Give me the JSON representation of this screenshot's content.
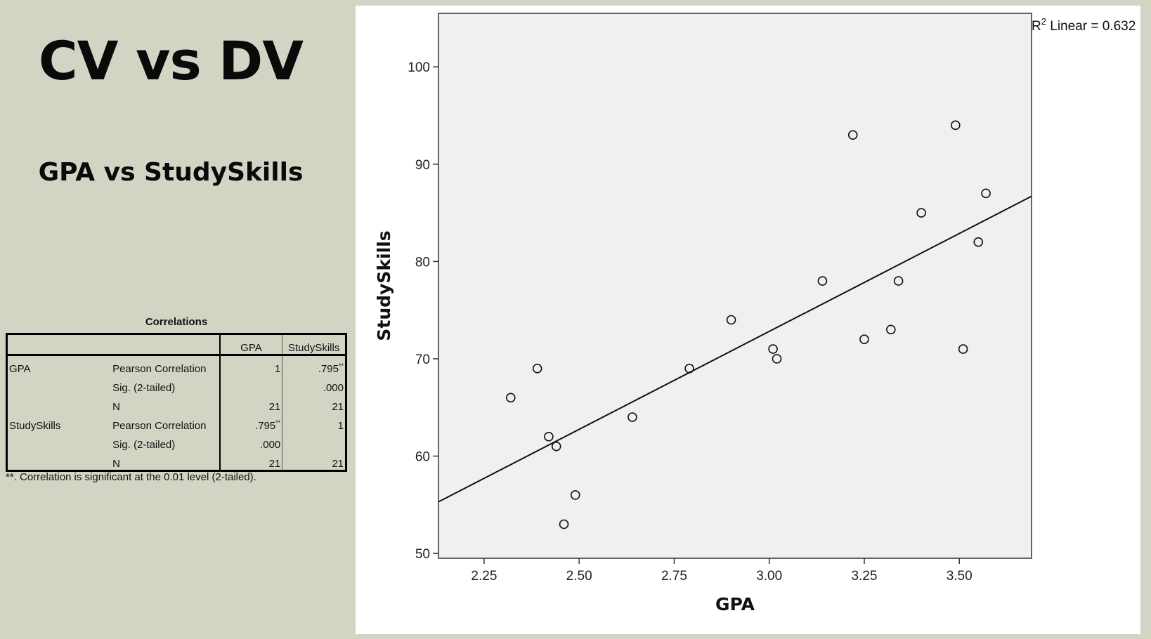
{
  "slide": {
    "title": "CV vs DV",
    "subtitle": "GPA vs StudySkills"
  },
  "correlations": {
    "title": "Correlations",
    "headers": [
      "",
      "",
      "GPA",
      "StudySkills"
    ],
    "rows": [
      {
        "var": "GPA",
        "stat": "Pearson Correlation",
        "gpa": "1",
        "gpa_sup": "",
        "ss": ".795",
        "ss_sup": "**"
      },
      {
        "var": "",
        "stat": "Sig. (2-tailed)",
        "gpa": "",
        "gpa_sup": "",
        "ss": ".000",
        "ss_sup": ""
      },
      {
        "var": "",
        "stat": "N",
        "gpa": "21",
        "gpa_sup": "",
        "ss": "21",
        "ss_sup": ""
      },
      {
        "var": "StudySkills",
        "stat": "Pearson Correlation",
        "gpa": ".795",
        "gpa_sup": "**",
        "ss": "1",
        "ss_sup": ""
      },
      {
        "var": "",
        "stat": "Sig. (2-tailed)",
        "gpa": ".000",
        "gpa_sup": "",
        "ss": "",
        "ss_sup": ""
      },
      {
        "var": "",
        "stat": "N",
        "gpa": "21",
        "gpa_sup": "",
        "ss": "21",
        "ss_sup": ""
      }
    ],
    "footnote": "**. Correlation is significant at the 0.01 level (2-tailed)."
  },
  "chart_data": {
    "type": "scatter",
    "title": "",
    "xlabel": "GPA",
    "ylabel": "StudySkills",
    "xlim": [
      2.13,
      3.69
    ],
    "ylim": [
      49.5,
      105.5
    ],
    "xticks": [
      "2.25",
      "2.50",
      "2.75",
      "3.00",
      "3.25",
      "3.50"
    ],
    "xtick_values": [
      2.25,
      2.5,
      2.75,
      3.0,
      3.25,
      3.5
    ],
    "yticks": [
      "50",
      "60",
      "70",
      "80",
      "90",
      "100"
    ],
    "ytick_values": [
      50,
      60,
      70,
      80,
      90,
      100
    ],
    "grid": false,
    "annotation": {
      "r2_label": "R",
      "r2_sup": "2",
      "r2_text": " Linear = 0.632"
    },
    "fit_line": {
      "x": [
        2.13,
        3.69
      ],
      "y": [
        55.3,
        86.7
      ]
    },
    "points": [
      {
        "x": 2.32,
        "y": 66
      },
      {
        "x": 2.39,
        "y": 69
      },
      {
        "x": 2.42,
        "y": 62
      },
      {
        "x": 2.44,
        "y": 61
      },
      {
        "x": 2.46,
        "y": 53
      },
      {
        "x": 2.49,
        "y": 56
      },
      {
        "x": 2.64,
        "y": 64
      },
      {
        "x": 2.79,
        "y": 69
      },
      {
        "x": 2.9,
        "y": 74
      },
      {
        "x": 3.01,
        "y": 71
      },
      {
        "x": 3.02,
        "y": 70
      },
      {
        "x": 3.14,
        "y": 78
      },
      {
        "x": 3.22,
        "y": 93
      },
      {
        "x": 3.25,
        "y": 72
      },
      {
        "x": 3.32,
        "y": 73
      },
      {
        "x": 3.34,
        "y": 78
      },
      {
        "x": 3.4,
        "y": 85
      },
      {
        "x": 3.49,
        "y": 94
      },
      {
        "x": 3.51,
        "y": 71
      },
      {
        "x": 3.55,
        "y": 82
      },
      {
        "x": 3.57,
        "y": 87
      }
    ],
    "colors": {
      "plot_bg": "#f0f1ef",
      "axis": "#333333",
      "marker": "#111111",
      "line": "#111111"
    }
  }
}
